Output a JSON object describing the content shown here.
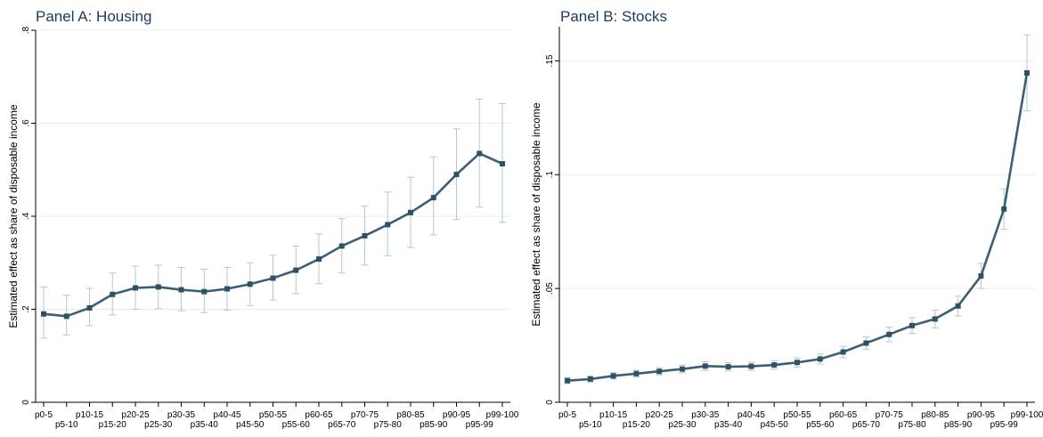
{
  "chart_data": [
    {
      "type": "line",
      "title": "Panel A: Housing",
      "ylabel": "Estimated effect as share of disposable income",
      "xlabel": "",
      "categories": [
        "p0-5",
        "p5-10",
        "p10-15",
        "p15-20",
        "p20-25",
        "p25-30",
        "p30-35",
        "p35-40",
        "p40-45",
        "p45-50",
        "p50-55",
        "p55-60",
        "p60-65",
        "p65-70",
        "p70-75",
        "p75-80",
        "p80-85",
        "p85-90",
        "p90-95",
        "p95-99",
        "p99-100"
      ],
      "ylim": [
        0,
        0.8
      ],
      "yticks": [
        0,
        0.2,
        0.4,
        0.6,
        0.8
      ],
      "ytick_labels": [
        "0",
        ".2",
        ".4",
        ".6",
        ".8"
      ],
      "grid": true,
      "series": [
        {
          "values": [
            0.19,
            0.185,
            0.203,
            0.232,
            0.246,
            0.248,
            0.242,
            0.238,
            0.244,
            0.254,
            0.267,
            0.284,
            0.308,
            0.336,
            0.358,
            0.382,
            0.408,
            0.44,
            0.49,
            0.535,
            0.513
          ],
          "ci_low": [
            0.138,
            0.145,
            0.165,
            0.188,
            0.2,
            0.201,
            0.197,
            0.193,
            0.198,
            0.208,
            0.22,
            0.234,
            0.255,
            0.278,
            0.295,
            0.315,
            0.333,
            0.36,
            0.393,
            0.42,
            0.387
          ],
          "ci_high": [
            0.248,
            0.23,
            0.245,
            0.278,
            0.293,
            0.295,
            0.29,
            0.286,
            0.29,
            0.3,
            0.316,
            0.336,
            0.362,
            0.395,
            0.422,
            0.452,
            0.484,
            0.528,
            0.588,
            0.652,
            0.642
          ]
        }
      ]
    },
    {
      "type": "line",
      "title": "Panel B: Stocks",
      "ylabel": "Estimated effect as share of disposable income",
      "xlabel": "",
      "categories": [
        "p0-5",
        "p5-10",
        "p10-15",
        "p15-20",
        "p20-25",
        "p25-30",
        "p30-35",
        "p35-40",
        "p40-45",
        "p45-50",
        "p50-55",
        "p55-60",
        "p60-65",
        "p65-70",
        "p70-75",
        "p75-80",
        "p80-85",
        "p85-90",
        "p90-95",
        "p95-99",
        "p99-100"
      ],
      "ylim": [
        0,
        0.165
      ],
      "yticks": [
        0,
        0.05,
        0.1,
        0.15
      ],
      "ytick_labels": [
        "0",
        ".05",
        ".1",
        ".15"
      ],
      "grid": true,
      "series": [
        {
          "values": [
            0.0095,
            0.0102,
            0.0116,
            0.0126,
            0.0136,
            0.0146,
            0.0159,
            0.0156,
            0.0158,
            0.0164,
            0.0175,
            0.019,
            0.0221,
            0.026,
            0.0298,
            0.0337,
            0.0366,
            0.0423,
            0.0555,
            0.0849,
            0.1447
          ],
          "ci_low": [
            0.0082,
            0.0089,
            0.0102,
            0.0111,
            0.012,
            0.0129,
            0.014,
            0.0138,
            0.014,
            0.0145,
            0.0155,
            0.0168,
            0.0196,
            0.0233,
            0.0266,
            0.0302,
            0.0327,
            0.038,
            0.05,
            0.076,
            0.128
          ],
          "ci_high": [
            0.0108,
            0.0115,
            0.013,
            0.0141,
            0.0152,
            0.0163,
            0.0178,
            0.0174,
            0.0176,
            0.0183,
            0.0195,
            0.0212,
            0.0246,
            0.0287,
            0.033,
            0.0372,
            0.0405,
            0.0466,
            0.061,
            0.0938,
            0.1614
          ]
        }
      ]
    }
  ],
  "colors": {
    "series": "#3c5f74",
    "marker": "#2f5166",
    "ci": "#b3c8d0",
    "title": "#1f3a5a",
    "grid": "#e6eef2"
  }
}
